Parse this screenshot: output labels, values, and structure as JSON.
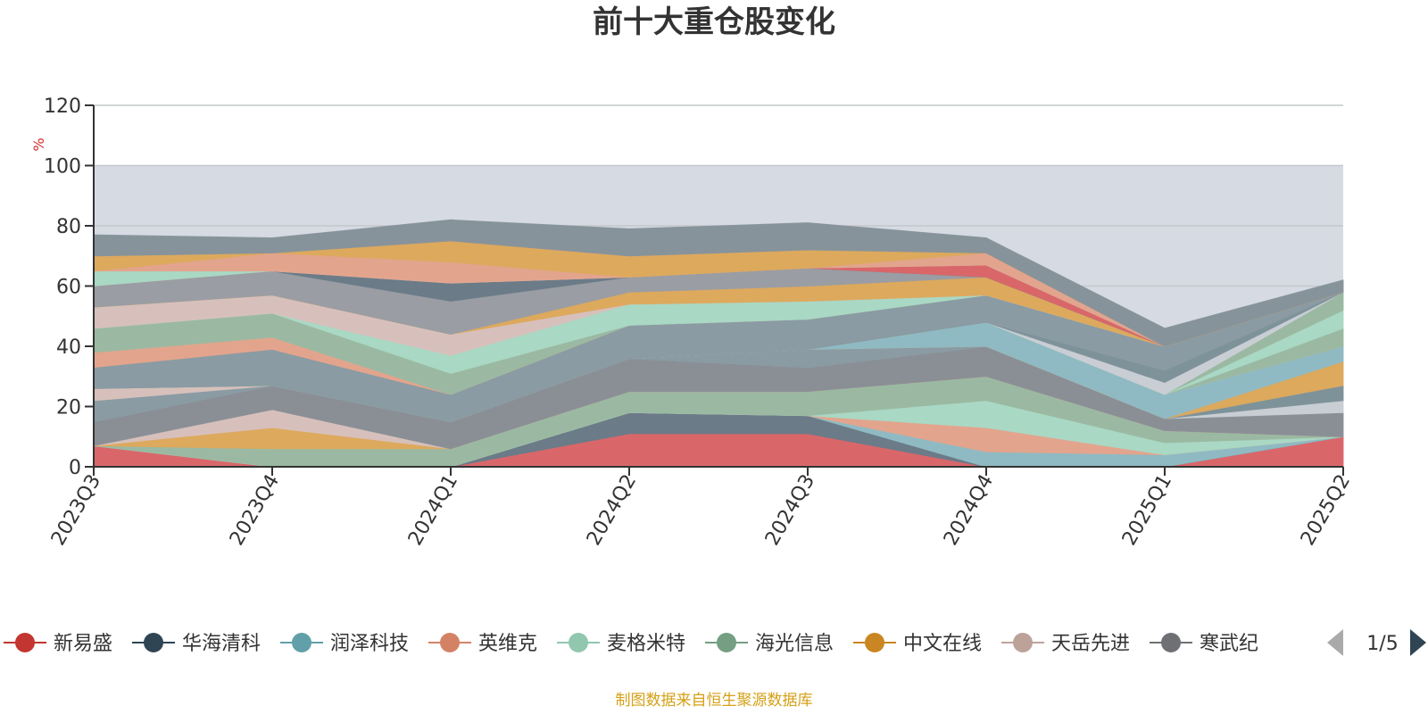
{
  "chart_data": {
    "type": "area",
    "title": "前十大重仓股变化",
    "ylabel": "%",
    "ylim": [
      0,
      120
    ],
    "yticks": [
      "0",
      "20",
      "40",
      "60",
      "80",
      "100",
      "120"
    ],
    "categories": [
      "2023Q3",
      "2023Q4",
      "2024Q1",
      "2024Q2",
      "2024Q3",
      "2024Q4",
      "2025Q1",
      "2025Q2"
    ],
    "grid": true,
    "band": {
      "from": 0,
      "to": 100,
      "color": "#d6dbe3"
    },
    "series": [
      {
        "name": "新易盛",
        "color": "#d9676a",
        "values": [
          7,
          0,
          0,
          11,
          11,
          0,
          0,
          10
        ]
      },
      {
        "name": "华海清科",
        "color": "#6b7b88",
        "values": [
          0,
          0,
          0,
          7,
          6,
          0,
          0,
          0
        ]
      },
      {
        "name": "润泽科技",
        "color": "#8fbac3",
        "values": [
          0,
          0,
          0,
          0,
          0,
          5,
          4,
          0
        ]
      },
      {
        "name": "英维克",
        "color": "#e3a48d",
        "values": [
          0,
          0,
          0,
          0,
          0,
          8,
          0,
          0
        ]
      },
      {
        "name": "麦格米特",
        "color": "#a9d8c4",
        "values": [
          0,
          0,
          0,
          0,
          0,
          9,
          4,
          0
        ]
      },
      {
        "name": "海光信息",
        "color": "#9bb9a2",
        "values": [
          0,
          6,
          6,
          7,
          8,
          8,
          4,
          0
        ]
      },
      {
        "name": "中文在线",
        "color": "#dda95d",
        "values": [
          0,
          7,
          0,
          0,
          0,
          0,
          0,
          0
        ]
      },
      {
        "name": "天岳先进",
        "color": "#d7c0bb",
        "values": [
          0,
          6,
          0,
          0,
          0,
          0,
          0,
          0
        ]
      },
      {
        "name": "寒武纪",
        "color": "#8a8f96",
        "values": [
          8,
          8,
          9,
          11,
          8,
          10,
          4,
          8
        ]
      },
      {
        "name": "",
        "color": "#c9ced4",
        "values": [
          0,
          0,
          0,
          0,
          0,
          0,
          0,
          4
        ]
      },
      {
        "name": "",
        "color": "#7e929a",
        "values": [
          0,
          0,
          0,
          0,
          0,
          0,
          0,
          5
        ]
      },
      {
        "name": "",
        "color": "#8a9ba3",
        "values": [
          7,
          0,
          0,
          0,
          6,
          0,
          0,
          0
        ]
      },
      {
        "name": "",
        "color": "#dda95d",
        "values": [
          0,
          0,
          0,
          0,
          0,
          0,
          0,
          8
        ]
      },
      {
        "name": "",
        "color": "#8fbac3",
        "values": [
          0,
          0,
          0,
          0,
          0,
          8,
          8,
          5
        ]
      },
      {
        "name": "",
        "color": "#d7c0bb",
        "values": [
          4,
          0,
          0,
          0,
          0,
          0,
          0,
          0
        ]
      },
      {
        "name": "",
        "color": "#9bb9a2",
        "values": [
          0,
          0,
          0,
          0,
          0,
          0,
          0,
          6
        ]
      },
      {
        "name": "",
        "color": "#a9d8c4",
        "values": [
          0,
          0,
          0,
          0,
          0,
          0,
          0,
          6
        ]
      },
      {
        "name": "",
        "color": "#9bb9a2",
        "values": [
          0,
          0,
          0,
          0,
          0,
          0,
          0,
          6
        ]
      },
      {
        "name": "",
        "color": "#c9ced4",
        "values": [
          0,
          0,
          0,
          0,
          0,
          0,
          4,
          0
        ]
      },
      {
        "name": "",
        "color": "#7e929a",
        "values": [
          0,
          0,
          0,
          0,
          0,
          0,
          4,
          0
        ]
      },
      {
        "name": "",
        "color": "#8a9ba3",
        "values": [
          7,
          12,
          9,
          11,
          10,
          9,
          8,
          0
        ]
      },
      {
        "name": "",
        "color": "#e3a48d",
        "values": [
          5,
          4,
          0,
          0,
          0,
          0,
          0,
          0
        ]
      },
      {
        "name": "",
        "color": "#9bb9a2",
        "values": [
          8,
          8,
          7,
          0,
          0,
          0,
          0,
          0
        ]
      },
      {
        "name": "",
        "color": "#a9d8c4",
        "values": [
          0,
          0,
          6,
          7,
          6,
          0,
          0,
          0
        ]
      },
      {
        "name": "",
        "color": "#d7c0bb",
        "values": [
          7,
          6,
          7,
          0,
          0,
          0,
          0,
          0
        ]
      },
      {
        "name": "",
        "color": "#dda95d",
        "values": [
          0,
          0,
          0,
          4,
          5,
          6,
          0,
          0
        ]
      },
      {
        "name": "",
        "color": "#9a9da3",
        "values": [
          7,
          8,
          11,
          5,
          6,
          0,
          0,
          0
        ]
      },
      {
        "name": "",
        "color": "#6b7b88",
        "values": [
          0,
          0,
          6,
          0,
          0,
          0,
          0,
          0
        ]
      },
      {
        "name": "",
        "color": "#d9676a",
        "values": [
          0,
          0,
          0,
          0,
          0,
          4,
          0,
          0
        ]
      },
      {
        "name": "",
        "color": "#a9d8c4",
        "values": [
          5,
          0,
          0,
          0,
          0,
          0,
          0,
          0
        ]
      },
      {
        "name": "",
        "color": "#e3a48d",
        "values": [
          0,
          6,
          7,
          0,
          0,
          4,
          0,
          0
        ]
      },
      {
        "name": "",
        "color": "#dda95d",
        "values": [
          5,
          0,
          7,
          7,
          6,
          0,
          0,
          0
        ]
      },
      {
        "name": "",
        "color": "#87939b",
        "values": [
          7,
          5,
          7,
          9,
          9,
          5,
          6,
          4
        ]
      }
    ],
    "legend": {
      "position": "bottom",
      "items": [
        {
          "name": "新易盛",
          "color": "#c23531"
        },
        {
          "name": "华海清科",
          "color": "#2f4554"
        },
        {
          "name": "润泽科技",
          "color": "#61a0a8"
        },
        {
          "name": "英维克",
          "color": "#d48265"
        },
        {
          "name": "麦格米特",
          "color": "#91c7ae"
        },
        {
          "name": "海光信息",
          "color": "#749f83"
        },
        {
          "name": "中文在线",
          "color": "#ca8622"
        },
        {
          "name": "天岳先进",
          "color": "#bda29a"
        },
        {
          "name": "寒武纪",
          "color": "#6e7074"
        }
      ],
      "page": "1/5"
    },
    "source": "制图数据来自恒生聚源数据库"
  }
}
